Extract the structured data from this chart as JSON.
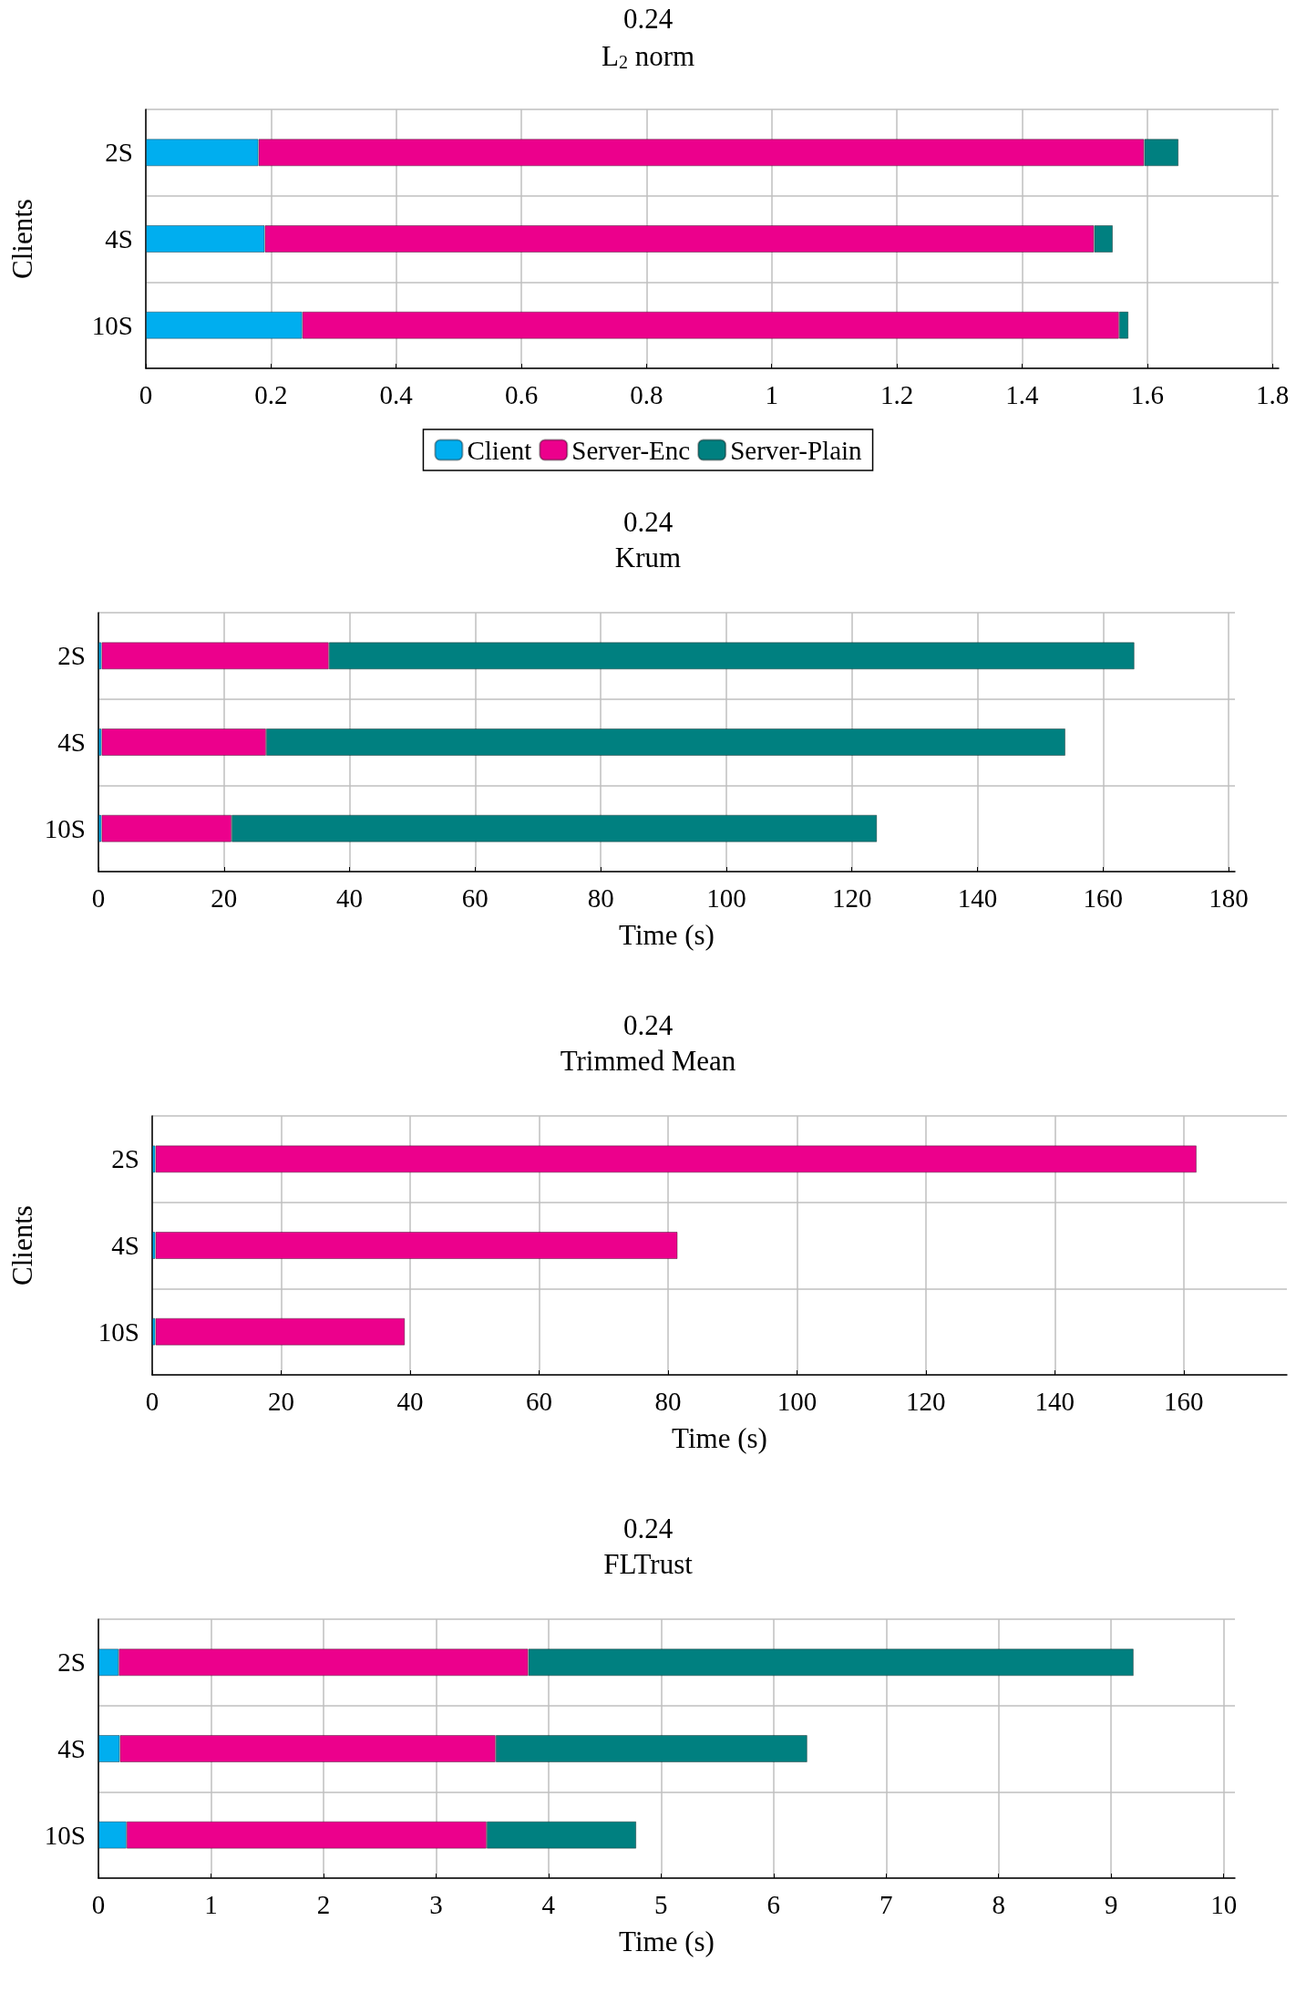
{
  "chart_data": [
    {
      "type": "bar",
      "title": "0.24",
      "subtitle": "L$_{2}$ norm",
      "ylabel": "Clients",
      "orientation": "horizontal",
      "stacked": true,
      "categories": [
        "2S",
        "4S",
        "10S"
      ],
      "series": [
        {
          "name": "Client",
          "color": "#00aeef",
          "values": [
            0.18,
            0.19,
            0.25
          ]
        },
        {
          "name": "Server-Enc",
          "color": "#ec008c",
          "values": [
            1.415,
            1.325,
            1.305
          ]
        },
        {
          "name": "Server-Plain",
          "color": "#008080",
          "values": [
            0.055,
            0.03,
            0.015
          ]
        }
      ],
      "xlim": [
        0,
        1.81
      ],
      "xticks": [
        0,
        0.2,
        0.4,
        0.6,
        0.8,
        1,
        1.2,
        1.4,
        1.6,
        1.8
      ],
      "grid": true,
      "legend": "bottom"
    },
    {
      "type": "bar",
      "title": "0.24",
      "subtitle": "Krum",
      "xlabel": "Time (s)",
      "orientation": "horizontal",
      "stacked": true,
      "categories": [
        "2S",
        "4S",
        "10S"
      ],
      "series": [
        {
          "color": "#00aeef",
          "values": [
            0.5,
            0.5,
            0.5
          ]
        },
        {
          "color": "#ec008c",
          "values": [
            36.2,
            26.2,
            20.7
          ]
        },
        {
          "color": "#008080",
          "values": [
            128.3,
            127.3,
            102.8
          ]
        }
      ],
      "xlim": [
        0,
        181
      ],
      "xticks": [
        0,
        20,
        40,
        60,
        80,
        100,
        120,
        140,
        160,
        180
      ],
      "grid": true
    },
    {
      "type": "bar",
      "title": "0.24",
      "subtitle": "Trimmed Mean",
      "xlabel": "Time (s)",
      "ylabel": "Clients",
      "orientation": "horizontal",
      "stacked": true,
      "categories": [
        "2S",
        "4S",
        "10S"
      ],
      "series": [
        {
          "color": "#00aeef",
          "values": [
            0.5,
            0.5,
            0.5
          ]
        },
        {
          "color": "#ec008c",
          "values": [
            161.5,
            81,
            38.7
          ]
        }
      ],
      "xlim": [
        0,
        176
      ],
      "xticks": [
        0,
        20,
        40,
        60,
        80,
        100,
        120,
        140,
        160
      ],
      "grid": true
    },
    {
      "type": "bar",
      "title": "0.24",
      "subtitle": "FLTrust",
      "xlabel": "Time (s)",
      "orientation": "horizontal",
      "stacked": true,
      "categories": [
        "2S",
        "4S",
        "10S"
      ],
      "series": [
        {
          "color": "#00aeef",
          "values": [
            0.18,
            0.19,
            0.25
          ]
        },
        {
          "color": "#ec008c",
          "values": [
            3.64,
            3.34,
            3.2
          ]
        },
        {
          "color": "#008080",
          "values": [
            5.38,
            2.77,
            1.33
          ]
        }
      ],
      "xlim": [
        0,
        10.1
      ],
      "xticks": [
        0,
        1,
        2,
        3,
        4,
        5,
        6,
        7,
        8,
        9,
        10
      ],
      "grid": true
    }
  ]
}
